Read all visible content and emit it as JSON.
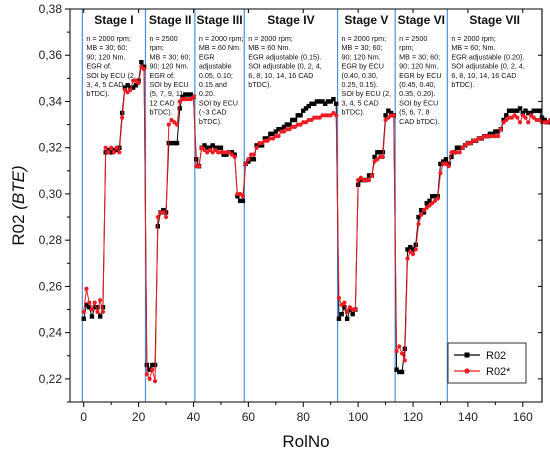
{
  "chart_data": {
    "type": "line",
    "xlabel": "RolNo",
    "ylabel_main": "R02",
    "ylabel_paren": "(BTE)",
    "xlim": [
      -5,
      167
    ],
    "ylim": [
      0.21,
      0.38
    ],
    "xticks": [
      0,
      20,
      40,
      60,
      80,
      100,
      120,
      140,
      160
    ],
    "yticks": [
      0.22,
      0.24,
      0.26,
      0.28,
      0.3,
      0.32,
      0.34,
      0.36,
      0.38
    ],
    "ytick_labels": [
      "0,22",
      "0,24",
      "0,26",
      "0,28",
      "0,30",
      "0,32",
      "0,34",
      "0,36",
      "0,38"
    ],
    "grid": false,
    "legend_position": "bottom-right",
    "stage_boundaries": [
      -0.5,
      22.5,
      40.5,
      58.5,
      92.5,
      113.5,
      132.5,
      167
    ],
    "stages": [
      {
        "title": "Stage I",
        "notes": [
          "n = 2000 rpm;",
          "MB = 30; 60;",
          "90; 120 Nm.",
          "EGR of.",
          "SOI by ECU (2,",
          "3, 4, 5 CAD",
          "bTDC)."
        ]
      },
      {
        "title": "Stage II",
        "notes": [
          "n = 2500",
          "rpm;",
          "MB = 30; 60;",
          "90; 120 Nm.",
          "EGR of.",
          "SOI by ECU",
          "(5, 7, 9, 11,",
          "12 CAD",
          "bTDC)."
        ]
      },
      {
        "title": "Stage III",
        "notes": [
          "n = 2000 rpm;",
          "MB = 60 Nm.",
          "EGR",
          "adjustable",
          "0.05, 0.10;",
          "0.15 and",
          "0.20.",
          "SOI by ECU",
          "(~3 CAD",
          "bTDC)."
        ]
      },
      {
        "title": "Stage IV",
        "notes": [
          "n = 2000 rpm;",
          "MB = 60 Nm.",
          "EGR adjustable (0.15).",
          "SOI adjustable (0, 2, 4,",
          "6, 8, 10, 14, 16 CAD",
          "bTDC)."
        ]
      },
      {
        "title": "Stage V",
        "notes": [
          "n = 2000 rpm;",
          "MB = 30; 60;",
          "90; 120 Nm.",
          "EGR by ECU",
          "(0.40, 0.30,",
          "0.25, 0.15).",
          "SOI by ECU (2,",
          "3, 4, 5 CAD",
          "bTDC)."
        ]
      },
      {
        "title": "Stage VI",
        "notes": [
          "n = 2500",
          "rpm;",
          "MB = 30; 60;",
          "90; 120 Nm.",
          "EGR by ECU",
          "(0.45, 0.40,",
          "0.35, 0.20).",
          "SOI by ECU",
          "(5, 6, 7, 8",
          "CAD bTDC)."
        ]
      },
      {
        "title": "Stage VII",
        "notes": [
          "n = 2000 rpm;",
          "MB = 60; Nm.",
          "EGR adjustable (0.20).",
          "SOI adjustable (0, 2, 4,",
          "6, 8, 10, 14, 16 CAD",
          "bTDC)."
        ]
      }
    ],
    "series": [
      {
        "name": "R02",
        "color": "#000000",
        "marker": "square",
        "values": [
          0.246,
          0.252,
          0.251,
          0.247,
          0.251,
          0.251,
          0.247,
          0.251,
          0.318,
          0.319,
          0.318,
          0.319,
          0.319,
          0.32,
          0.335,
          0.346,
          0.347,
          0.346,
          0.346,
          0.347,
          0.349,
          0.357,
          0.355,
          0.226,
          0.224,
          0.226,
          0.226,
          0.286,
          0.292,
          0.293,
          0.292,
          0.322,
          0.322,
          0.322,
          0.322,
          0.337,
          0.342,
          0.343,
          0.343,
          0.343,
          0.342,
          0.315,
          0.312,
          0.32,
          0.321,
          0.32,
          0.32,
          0.321,
          0.32,
          0.32,
          0.32,
          0.317,
          0.317,
          0.318,
          0.318,
          0.317,
          0.299,
          0.297,
          0.297,
          0.313,
          0.314,
          0.315,
          0.315,
          0.321,
          0.321,
          0.321,
          0.324,
          0.324,
          0.326,
          0.326,
          0.327,
          0.328,
          0.328,
          0.329,
          0.33,
          0.33,
          0.332,
          0.332,
          0.334,
          0.334,
          0.336,
          0.337,
          0.338,
          0.339,
          0.339,
          0.34,
          0.34,
          0.34,
          0.339,
          0.34,
          0.34,
          0.341,
          0.339,
          0.246,
          0.248,
          0.251,
          0.246,
          0.25,
          0.248,
          0.25,
          0.304,
          0.306,
          0.306,
          0.306,
          0.308,
          0.308,
          0.316,
          0.318,
          0.318,
          0.318,
          0.334,
          0.336,
          0.335,
          0.334,
          0.224,
          0.223,
          0.223,
          0.233,
          0.276,
          0.277,
          0.276,
          0.278,
          0.29,
          0.293,
          0.292,
          0.296,
          0.297,
          0.299,
          0.299,
          0.299,
          0.313,
          0.314,
          0.315,
          0.313,
          0.316,
          0.318,
          0.32,
          0.32,
          0.32,
          0.321,
          0.322,
          0.322,
          0.323,
          0.323,
          0.324,
          0.324,
          0.325,
          0.325,
          0.326,
          0.326,
          0.327,
          0.327,
          0.328,
          0.332,
          0.334,
          0.336,
          0.336,
          0.336,
          0.336,
          0.337,
          0.335,
          0.336,
          0.335,
          0.335,
          0.336,
          0.336,
          0.336,
          0.333,
          0.332,
          0.331,
          0.331
        ]
      },
      {
        "name": "R02*",
        "color": "#ee1c25",
        "marker": "circle",
        "values": [
          0.249,
          0.259,
          0.253,
          0.25,
          0.253,
          0.249,
          0.254,
          0.249,
          0.32,
          0.318,
          0.32,
          0.318,
          0.32,
          0.318,
          0.333,
          0.345,
          0.344,
          0.345,
          0.349,
          0.349,
          0.348,
          0.355,
          0.354,
          0.222,
          0.22,
          0.224,
          0.219,
          0.29,
          0.292,
          0.292,
          0.29,
          0.33,
          0.332,
          0.331,
          0.33,
          0.34,
          0.341,
          0.341,
          0.341,
          0.341,
          0.342,
          0.312,
          0.312,
          0.32,
          0.319,
          0.318,
          0.319,
          0.318,
          0.319,
          0.318,
          0.318,
          0.318,
          0.318,
          0.318,
          0.317,
          0.316,
          0.3,
          0.3,
          0.299,
          0.313,
          0.315,
          0.317,
          0.317,
          0.32,
          0.322,
          0.322,
          0.323,
          0.323,
          0.324,
          0.324,
          0.325,
          0.325,
          0.327,
          0.327,
          0.328,
          0.328,
          0.329,
          0.329,
          0.33,
          0.33,
          0.331,
          0.331,
          0.332,
          0.332,
          0.333,
          0.333,
          0.333,
          0.334,
          0.334,
          0.334,
          0.334,
          0.335,
          0.334,
          0.255,
          0.252,
          0.253,
          0.249,
          0.251,
          0.25,
          0.25,
          0.306,
          0.307,
          0.306,
          0.306,
          0.306,
          0.308,
          0.314,
          0.315,
          0.316,
          0.316,
          0.332,
          0.333,
          0.334,
          0.334,
          0.232,
          0.234,
          0.231,
          0.228,
          0.272,
          0.275,
          0.274,
          0.276,
          0.287,
          0.291,
          0.293,
          0.294,
          0.295,
          0.296,
          0.297,
          0.298,
          0.309,
          0.313,
          0.313,
          0.312,
          0.318,
          0.318,
          0.318,
          0.318,
          0.32,
          0.321,
          0.322,
          0.322,
          0.323,
          0.323,
          0.324,
          0.324,
          0.325,
          0.325,
          0.325,
          0.325,
          0.325,
          0.325,
          0.328,
          0.331,
          0.332,
          0.333,
          0.333,
          0.334,
          0.333,
          0.331,
          0.334,
          0.333,
          0.331,
          0.334,
          0.333,
          0.332,
          0.332,
          0.331,
          0.331,
          0.331,
          0.332
        ]
      }
    ]
  }
}
